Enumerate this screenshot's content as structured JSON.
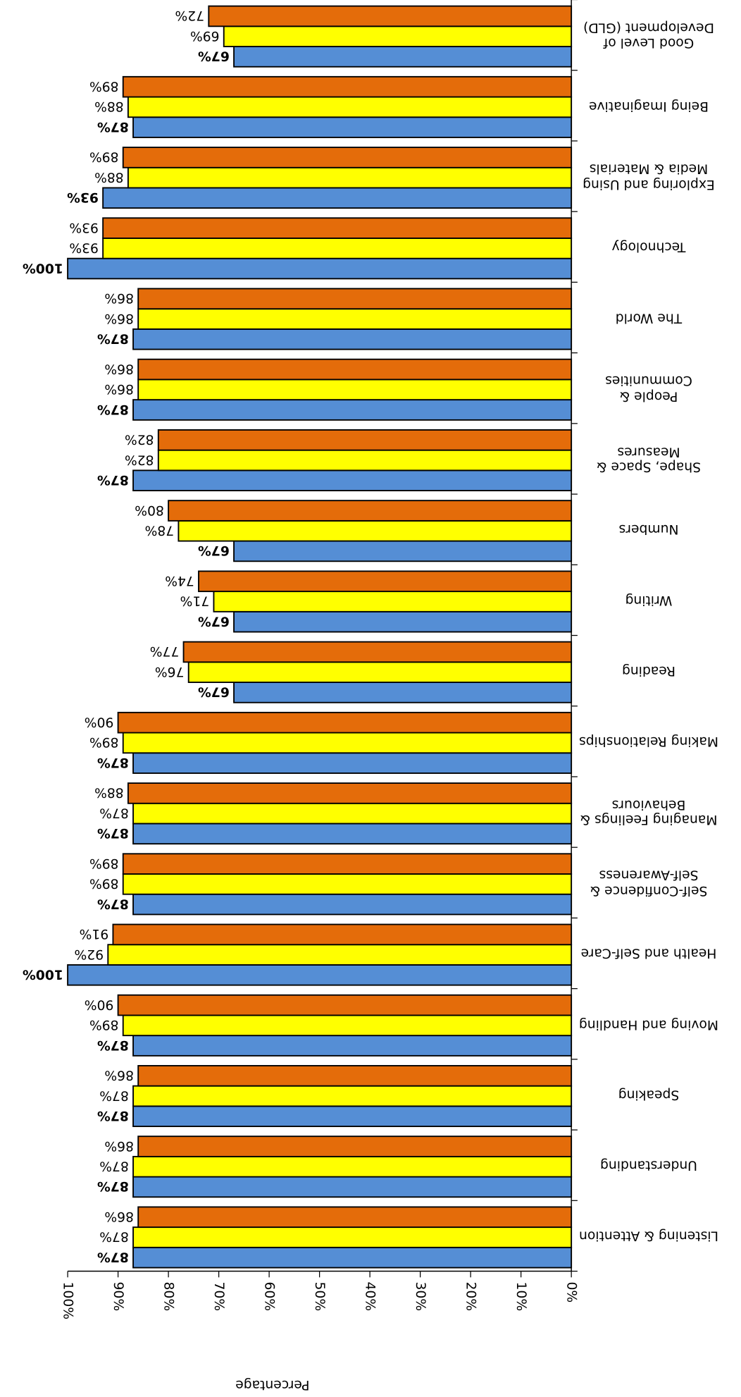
{
  "chart_data": {
    "type": "bar",
    "orientation": "horizontal",
    "rotated": 180,
    "x_label": "Percentage",
    "categories": [
      "Listening & Attention",
      "Understanding",
      "Speaking",
      "Moving and Handling",
      "Health and Self-Care",
      "Self-Confidence & Self-Awareness",
      "Managing Feelings & Behaviours",
      "Making Relationships",
      "Reading",
      "Writing",
      "Numbers",
      "Shape, Space & Measures",
      "People & Communities",
      "The World",
      "Technology",
      "Exploring and Using Media & Materials",
      "Being Imaginative",
      "Good Level of Development (GLD)"
    ],
    "series": [
      {
        "color": "#558ed5",
        "bold_labels": true,
        "values": [
          87,
          87,
          87,
          87,
          100,
          87,
          87,
          87,
          67,
          67,
          67,
          87,
          87,
          87,
          100,
          93,
          87,
          67
        ],
        "value_labels": [
          "87%",
          "87%",
          "87%",
          "87%",
          "100%",
          "87%",
          "87%",
          "87%",
          "67%",
          "67%",
          "67%",
          "87%",
          "87%",
          "87%",
          "100%",
          "93%",
          "87%",
          "67%"
        ]
      },
      {
        "color": "#ffff00",
        "bold_labels": false,
        "values": [
          87,
          87,
          87,
          89,
          92,
          89,
          87,
          89,
          76,
          71,
          78,
          82,
          86,
          86,
          93,
          88,
          88,
          69
        ],
        "value_labels": [
          "87%",
          "87%",
          "87%",
          "89%",
          "92%",
          "89%",
          "87%",
          "89%",
          "76%",
          "71%",
          "78%",
          "82%",
          "86%",
          "86%",
          "93%",
          "88%",
          "88%",
          "69%"
        ]
      },
      {
        "color": "#e46c0a",
        "bold_labels": false,
        "values": [
          86,
          86,
          86,
          90,
          91,
          89,
          88,
          90,
          77,
          74,
          80,
          82,
          86,
          86,
          93,
          89,
          89,
          72
        ],
        "value_labels": [
          "86%",
          "86%",
          "86%",
          "90%",
          "91%",
          "89%",
          "88%",
          "90%",
          "77%",
          "74%",
          "80%",
          "82%",
          "86%",
          "86%",
          "93%",
          "89%",
          "89%",
          "72%"
        ]
      }
    ],
    "xlim": [
      0,
      100
    ],
    "xticks": [
      {
        "value": 0,
        "label": "0%"
      },
      {
        "value": 10,
        "label": "10%"
      },
      {
        "value": 20,
        "label": "20%"
      },
      {
        "value": 30,
        "label": "30%"
      },
      {
        "value": 40,
        "label": "40%"
      },
      {
        "value": 50,
        "label": "50%"
      },
      {
        "value": 60,
        "label": "60%"
      },
      {
        "value": 70,
        "label": "70%"
      },
      {
        "value": 80,
        "label": "80%"
      },
      {
        "value": 90,
        "label": "90%"
      },
      {
        "value": 100,
        "label": "100%"
      }
    ]
  }
}
